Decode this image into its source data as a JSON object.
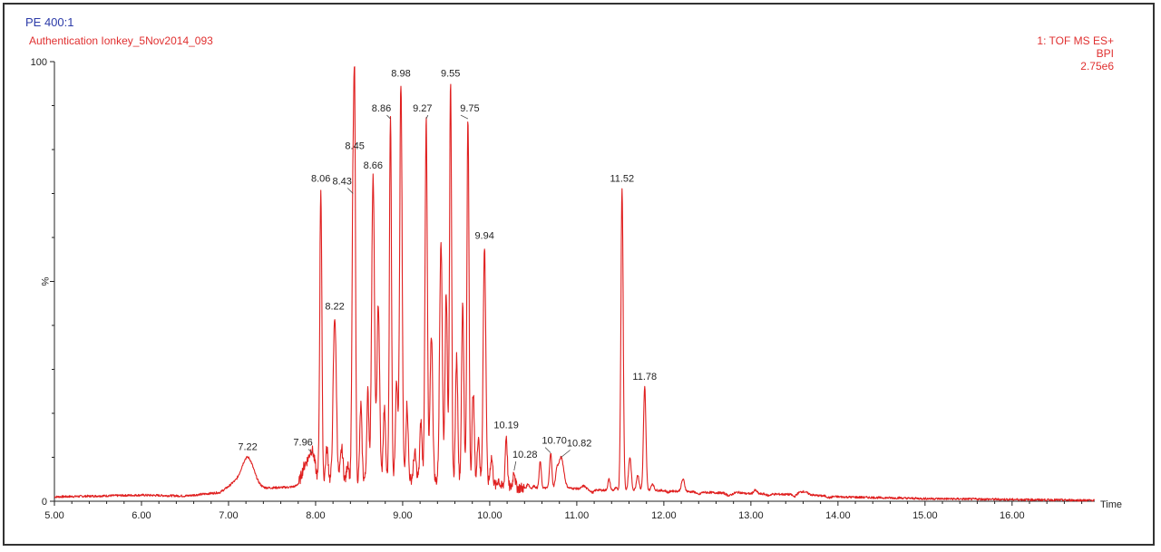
{
  "header": {
    "sample_name": "PE 400:1",
    "run_name": "Authentication Ionkey_5Nov2014_093",
    "function": "1: TOF MS ES+",
    "trace": "BPI",
    "intensity": "2.75e6"
  },
  "chart_data": {
    "type": "line",
    "xlabel": "Time",
    "ylabel": "%",
    "xlim": [
      5.0,
      16.95
    ],
    "ylim": [
      0,
      100
    ],
    "x_ticks": [
      "5.00",
      "6.00",
      "7.00",
      "8.00",
      "9.00",
      "10.00",
      "11.00",
      "12.00",
      "13.00",
      "14.00",
      "15.00",
      "16.00"
    ],
    "y_ticks": [
      "0",
      "100"
    ],
    "color": "#e02020",
    "grid": false,
    "baseline": [
      [
        5.0,
        1.0
      ],
      [
        6.0,
        1.4
      ],
      [
        6.5,
        1.2
      ],
      [
        6.9,
        2.0
      ],
      [
        7.05,
        4.0
      ],
      [
        7.4,
        3.0
      ],
      [
        7.7,
        3.2
      ],
      [
        8.0,
        4.0
      ],
      [
        8.5,
        5.0
      ],
      [
        9.0,
        5.0
      ],
      [
        9.5,
        4.5
      ],
      [
        10.0,
        3.5
      ],
      [
        10.4,
        3.0
      ],
      [
        10.9,
        3.0
      ],
      [
        11.3,
        2.5
      ],
      [
        11.9,
        2.5
      ],
      [
        12.5,
        2.0
      ],
      [
        13.0,
        1.7
      ],
      [
        13.6,
        1.5
      ],
      [
        14.0,
        1.0
      ],
      [
        15.0,
        0.6
      ],
      [
        16.0,
        0.4
      ],
      [
        16.95,
        0.2
      ]
    ],
    "peaks": [
      {
        "x": 7.22,
        "y": 10.0,
        "w": 0.07,
        "label": "7.22"
      },
      {
        "x": 7.88,
        "y": 8.0,
        "w": 0.04
      },
      {
        "x": 7.96,
        "y": 11.0,
        "w": 0.035,
        "label": "7.96"
      },
      {
        "x": 8.06,
        "y": 71.0,
        "w": 0.012,
        "label": "8.06"
      },
      {
        "x": 8.13,
        "y": 12.0,
        "w": 0.015
      },
      {
        "x": 8.22,
        "y": 42.0,
        "w": 0.018,
        "label": "8.22"
      },
      {
        "x": 8.3,
        "y": 12.0,
        "w": 0.015
      },
      {
        "x": 8.37,
        "y": 9.0,
        "w": 0.012
      },
      {
        "x": 8.43,
        "y": 70.0,
        "w": 0.012,
        "label": "8.43"
      },
      {
        "x": 8.45,
        "y": 78.0,
        "w": 0.01,
        "label": "8.45"
      },
      {
        "x": 8.52,
        "y": 22.0,
        "w": 0.012
      },
      {
        "x": 8.6,
        "y": 25.0,
        "w": 0.012
      },
      {
        "x": 8.66,
        "y": 74.0,
        "w": 0.016,
        "label": "8.66"
      },
      {
        "x": 8.72,
        "y": 45.0,
        "w": 0.015
      },
      {
        "x": 8.79,
        "y": 21.0,
        "w": 0.013
      },
      {
        "x": 8.86,
        "y": 87.0,
        "w": 0.012,
        "label": "8.86"
      },
      {
        "x": 8.93,
        "y": 28.0,
        "w": 0.013
      },
      {
        "x": 8.98,
        "y": 95.0,
        "w": 0.014,
        "label": "8.98"
      },
      {
        "x": 9.05,
        "y": 22.0,
        "w": 0.013
      },
      {
        "x": 9.14,
        "y": 11.0,
        "w": 0.015
      },
      {
        "x": 9.21,
        "y": 18.0,
        "w": 0.013
      },
      {
        "x": 9.27,
        "y": 87.0,
        "w": 0.013,
        "label": "9.27"
      },
      {
        "x": 9.33,
        "y": 38.0,
        "w": 0.015
      },
      {
        "x": 9.44,
        "y": 60.0,
        "w": 0.015
      },
      {
        "x": 9.5,
        "y": 48.0,
        "w": 0.013
      },
      {
        "x": 9.55,
        "y": 95.0,
        "w": 0.012,
        "label": "9.55"
      },
      {
        "x": 9.62,
        "y": 33.0,
        "w": 0.013
      },
      {
        "x": 9.69,
        "y": 45.0,
        "w": 0.013
      },
      {
        "x": 9.75,
        "y": 87.0,
        "w": 0.012,
        "label": "9.75"
      },
      {
        "x": 9.81,
        "y": 25.0,
        "w": 0.013
      },
      {
        "x": 9.87,
        "y": 15.0,
        "w": 0.013
      },
      {
        "x": 9.94,
        "y": 58.0,
        "w": 0.015,
        "label": "9.94"
      },
      {
        "x": 10.02,
        "y": 10.0,
        "w": 0.015
      },
      {
        "x": 10.1,
        "y": 5.0,
        "w": 0.012
      },
      {
        "x": 10.19,
        "y": 15.0,
        "w": 0.012,
        "label": "10.19"
      },
      {
        "x": 10.28,
        "y": 7.0,
        "w": 0.012,
        "label": "10.28"
      },
      {
        "x": 10.44,
        "y": 4.0,
        "w": 0.012
      },
      {
        "x": 10.51,
        "y": 3.5,
        "w": 0.012
      },
      {
        "x": 10.58,
        "y": 9.0,
        "w": 0.012
      },
      {
        "x": 10.7,
        "y": 11.0,
        "w": 0.013,
        "label": "10.70"
      },
      {
        "x": 10.77,
        "y": 6.0,
        "w": 0.015
      },
      {
        "x": 10.82,
        "y": 10.0,
        "w": 0.03,
        "label": "10.82"
      },
      {
        "x": 11.08,
        "y": 3.5,
        "w": 0.02
      },
      {
        "x": 11.18,
        "y": 2.0,
        "w": 0.02
      },
      {
        "x": 11.37,
        "y": 5.0,
        "w": 0.013
      },
      {
        "x": 11.45,
        "y": 3.0,
        "w": 0.013
      },
      {
        "x": 11.52,
        "y": 71.0,
        "w": 0.013,
        "label": "11.52"
      },
      {
        "x": 11.61,
        "y": 10.0,
        "w": 0.015
      },
      {
        "x": 11.7,
        "y": 6.0,
        "w": 0.015
      },
      {
        "x": 11.78,
        "y": 26.0,
        "w": 0.014,
        "label": "11.78"
      },
      {
        "x": 11.87,
        "y": 4.0,
        "w": 0.015
      },
      {
        "x": 12.05,
        "y": 2.0,
        "w": 0.015
      },
      {
        "x": 12.22,
        "y": 5.0,
        "w": 0.018
      },
      {
        "x": 12.4,
        "y": 1.5,
        "w": 0.02
      },
      {
        "x": 12.75,
        "y": 1.3,
        "w": 0.03
      },
      {
        "x": 12.86,
        "y": 2.0,
        "w": 0.04
      },
      {
        "x": 13.05,
        "y": 2.5,
        "w": 0.02
      },
      {
        "x": 13.2,
        "y": 1.3,
        "w": 0.02
      },
      {
        "x": 13.5,
        "y": 1.0,
        "w": 0.02
      },
      {
        "x": 13.6,
        "y": 2.2,
        "w": 0.05
      },
      {
        "x": 13.9,
        "y": 0.8,
        "w": 0.02
      },
      {
        "x": 14.7,
        "y": 0.8,
        "w": 0.015
      }
    ]
  }
}
